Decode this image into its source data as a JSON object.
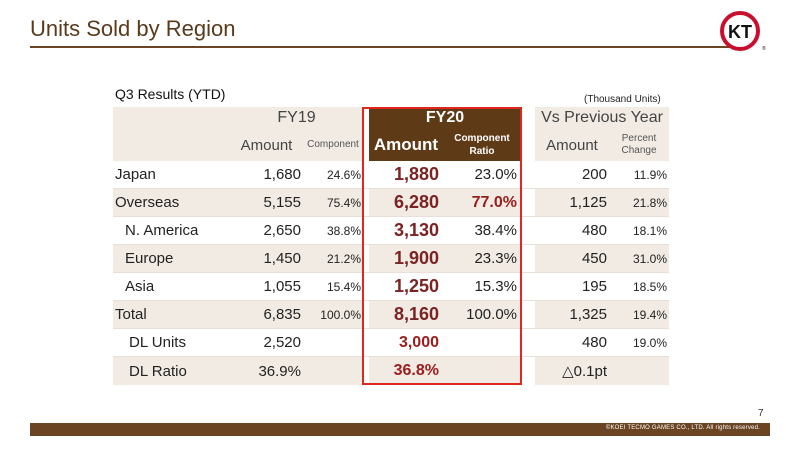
{
  "header": {
    "title": "Units Sold by Region",
    "logo_text": "KT"
  },
  "table": {
    "caption": "Q3 Results (YTD)",
    "units": "(Thousand Units)",
    "groups": {
      "fy19": "FY19",
      "fy20": "FY20",
      "vs": "Vs Previous Year"
    },
    "subheaders": {
      "fy19_amount": "Amount",
      "fy19_ratio": "Component",
      "fy20_amount": "Amount",
      "fy20_ratio": "Component Ratio",
      "vs_amount": "Amount",
      "vs_pct": "Percent Change"
    },
    "rows": [
      {
        "label": "Japan",
        "fy19_amount": "1,680",
        "fy19_ratio": "24.6%",
        "fy20_amount": "1,880",
        "fy20_ratio": "23.0%",
        "vs_amount": "200",
        "vs_pct": "11.9%"
      },
      {
        "label": "Overseas",
        "fy19_amount": "5,155",
        "fy19_ratio": "75.4%",
        "fy20_amount": "6,280",
        "fy20_ratio": "77.0%",
        "vs_amount": "1,125",
        "vs_pct": "21.8%"
      },
      {
        "label": "N. America",
        "fy19_amount": "2,650",
        "fy19_ratio": "38.8%",
        "fy20_amount": "3,130",
        "fy20_ratio": "38.4%",
        "vs_amount": "480",
        "vs_pct": "18.1%"
      },
      {
        "label": "Europe",
        "fy19_amount": "1,450",
        "fy19_ratio": "21.2%",
        "fy20_amount": "1,900",
        "fy20_ratio": "23.3%",
        "vs_amount": "450",
        "vs_pct": "31.0%"
      },
      {
        "label": "Asia",
        "fy19_amount": "1,055",
        "fy19_ratio": "15.4%",
        "fy20_amount": "1,250",
        "fy20_ratio": "15.3%",
        "vs_amount": "195",
        "vs_pct": "18.5%"
      },
      {
        "label": "Total",
        "fy19_amount": "6,835",
        "fy19_ratio": "100.0%",
        "fy20_amount": "8,160",
        "fy20_ratio": "100.0%",
        "vs_amount": "1,325",
        "vs_pct": "19.4%"
      },
      {
        "label": "DL Units",
        "fy19_amount": "2,520",
        "fy19_ratio": "",
        "fy20_amount": "3,000",
        "fy20_ratio": "",
        "vs_amount": "480",
        "vs_pct": "19.0%"
      },
      {
        "label": "DL Ratio",
        "fy19_amount": "36.9%",
        "fy19_ratio": "",
        "fy20_amount": "36.8%",
        "fy20_ratio": "",
        "vs_amount": "△0.1pt",
        "vs_pct": ""
      }
    ]
  },
  "footer": {
    "page_number": "7",
    "copyright": "©KOEI TECMO GAMES CO., LTD. All rights reserved."
  },
  "colors": {
    "brand_brown": "#6b4423",
    "highlight_red": "#e0261e",
    "fy20_header_bg": "#5e3a17",
    "row_shade": "#f1ebe4"
  }
}
